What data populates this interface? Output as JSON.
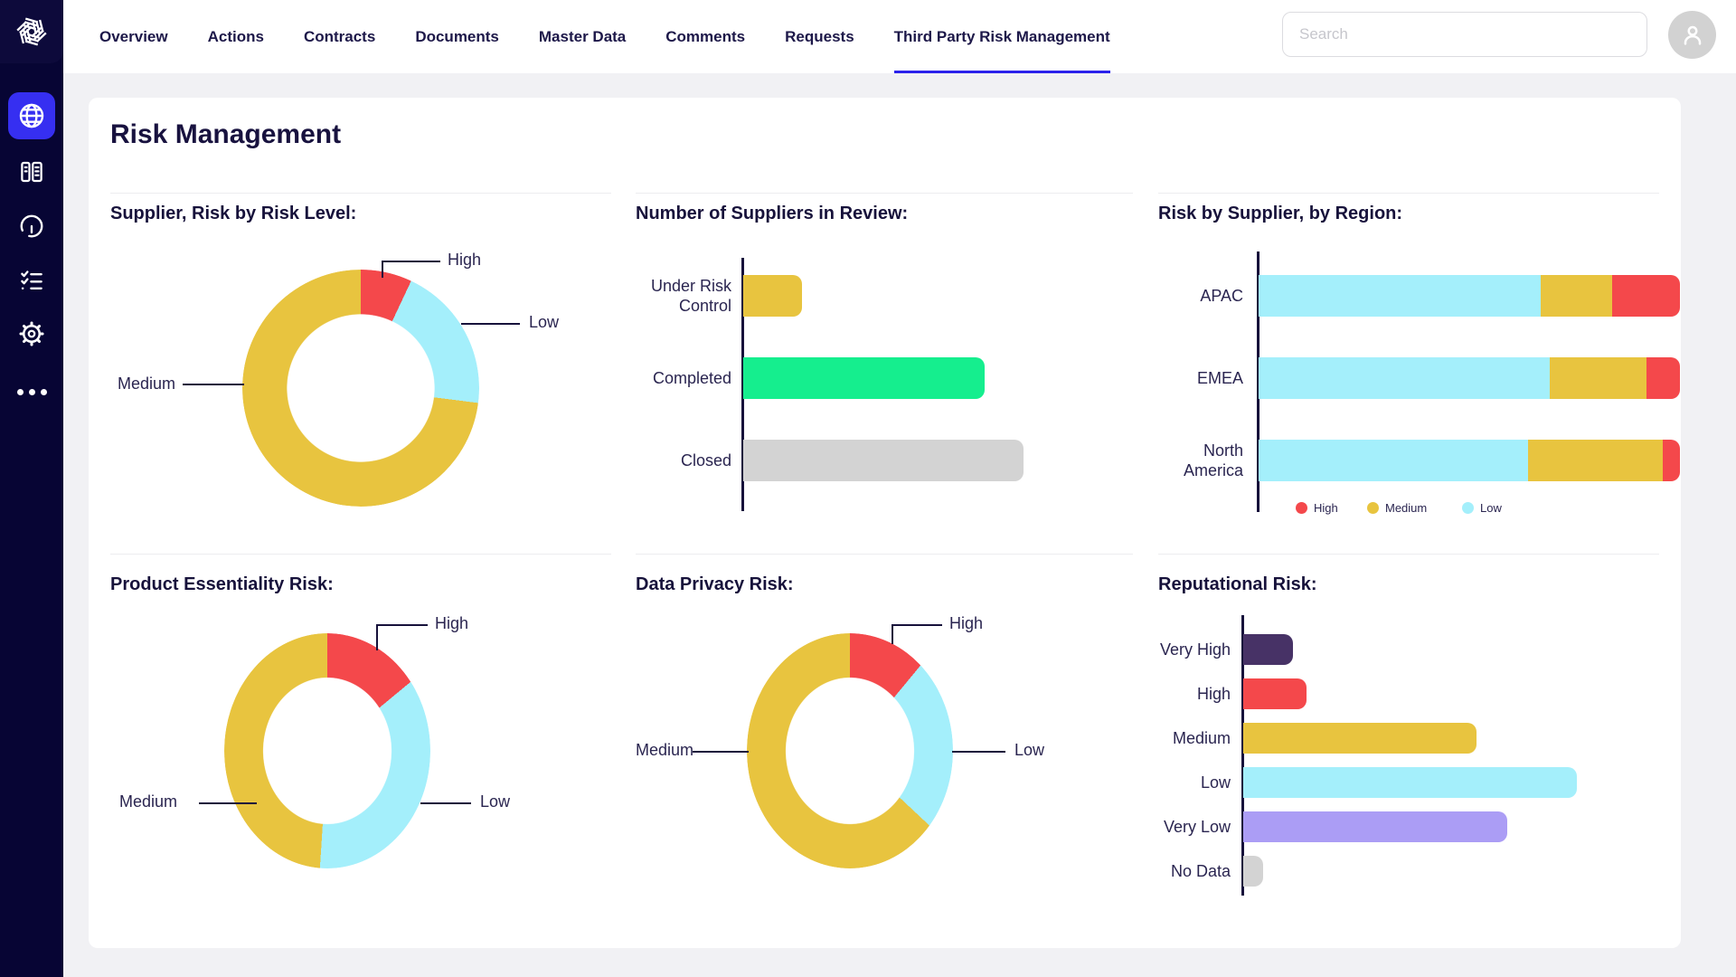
{
  "nav": {
    "items": [
      {
        "label": "Overview",
        "active": false
      },
      {
        "label": "Actions",
        "active": false
      },
      {
        "label": "Contracts",
        "active": false
      },
      {
        "label": "Documents",
        "active": false
      },
      {
        "label": "Master Data",
        "active": false
      },
      {
        "label": "Comments",
        "active": false
      },
      {
        "label": "Requests",
        "active": false
      },
      {
        "label": "Third Party Risk Management",
        "active": true
      }
    ],
    "active_underline_color": "#2B22EB"
  },
  "header": {
    "search_placeholder": "Search"
  },
  "sidebar": {
    "items": [
      {
        "icon": "globe-icon",
        "active": true
      },
      {
        "icon": "library-icon",
        "active": false
      },
      {
        "icon": "gauge-icon",
        "active": false
      },
      {
        "icon": "checklist-icon",
        "active": false
      },
      {
        "icon": "gear-icon",
        "active": false
      },
      {
        "icon": "more-icon",
        "active": false
      }
    ],
    "active_bg_color": "#362FF1",
    "bg_color": "#070534"
  },
  "page": {
    "title": "Risk Management"
  },
  "risk_colors": {
    "high": "#F4484B",
    "medium": "#E8C43F",
    "low": "#A4EFFB",
    "very_high": "#473266",
    "very_low": "#AB9DF5",
    "no_data": "#D3D3D3",
    "completed": "#15EE8E"
  },
  "chart_data": [
    {
      "id": "supplier-risk-by-risk-level",
      "type": "pie",
      "style": "donut",
      "title": "Supplier, Risk by Risk Level:",
      "segments": [
        {
          "label": "High",
          "percent": 7,
          "color": "#F4484B"
        },
        {
          "label": "Low",
          "percent": 20,
          "color": "#A4EFFB"
        },
        {
          "label": "Medium",
          "percent": 73,
          "color": "#E8C43F"
        }
      ]
    },
    {
      "id": "number-of-suppliers-in-review",
      "type": "bar",
      "orientation": "horizontal",
      "title": "Number of Suppliers in Review:",
      "categories": [
        "Under Risk Control",
        "Completed",
        "Closed"
      ],
      "values_pct_of_max": [
        21,
        86,
        100
      ],
      "colors": [
        "#E8C43F",
        "#15EE8E",
        "#D3D3D3"
      ]
    },
    {
      "id": "risk-by-supplier-by-region",
      "type": "bar",
      "style": "stacked",
      "orientation": "horizontal",
      "title": "Risk by Supplier, by Region:",
      "categories": [
        "APAC",
        "EMEA",
        "North America"
      ],
      "series": [
        {
          "name": "Low",
          "color": "#A4EFFB",
          "values_pct": [
            67,
            69,
            64
          ]
        },
        {
          "name": "Medium",
          "color": "#E8C43F",
          "values_pct": [
            17,
            23,
            32
          ]
        },
        {
          "name": "High",
          "color": "#F4484B",
          "values_pct": [
            16,
            8,
            4
          ]
        }
      ],
      "legend": [
        {
          "label": "High",
          "color": "#F4484B"
        },
        {
          "label": "Medium",
          "color": "#E8C43F"
        },
        {
          "label": "Low",
          "color": "#A4EFFB"
        }
      ],
      "legend_position": "bottom"
    },
    {
      "id": "product-essentiality-risk",
      "type": "pie",
      "style": "donut",
      "title": "Product Essentiality Risk:",
      "segments": [
        {
          "label": "High",
          "percent": 14,
          "color": "#F4484B"
        },
        {
          "label": "Low",
          "percent": 37,
          "color": "#A4EFFB"
        },
        {
          "label": "Medium",
          "percent": 49,
          "color": "#E8C43F"
        }
      ]
    },
    {
      "id": "data-privacy-risk",
      "type": "pie",
      "style": "donut",
      "title": "Data Privacy Risk:",
      "segments": [
        {
          "label": "High",
          "percent": 11,
          "color": "#F4484B"
        },
        {
          "label": "Low",
          "percent": 26,
          "color": "#A4EFFB"
        },
        {
          "label": "Medium",
          "percent": 63,
          "color": "#E8C43F"
        }
      ]
    },
    {
      "id": "reputational-risk",
      "type": "bar",
      "orientation": "horizontal",
      "title": "Reputational Risk:",
      "categories": [
        "Very High",
        "High",
        "Medium",
        "Low",
        "Very Low",
        "No Data"
      ],
      "values_pct_of_max": [
        15,
        19,
        70,
        100,
        79,
        6
      ],
      "colors": [
        "#473266",
        "#F4484B",
        "#E8C43F",
        "#A4EFFB",
        "#AB9DF5",
        "#D3D3D3"
      ]
    }
  ]
}
